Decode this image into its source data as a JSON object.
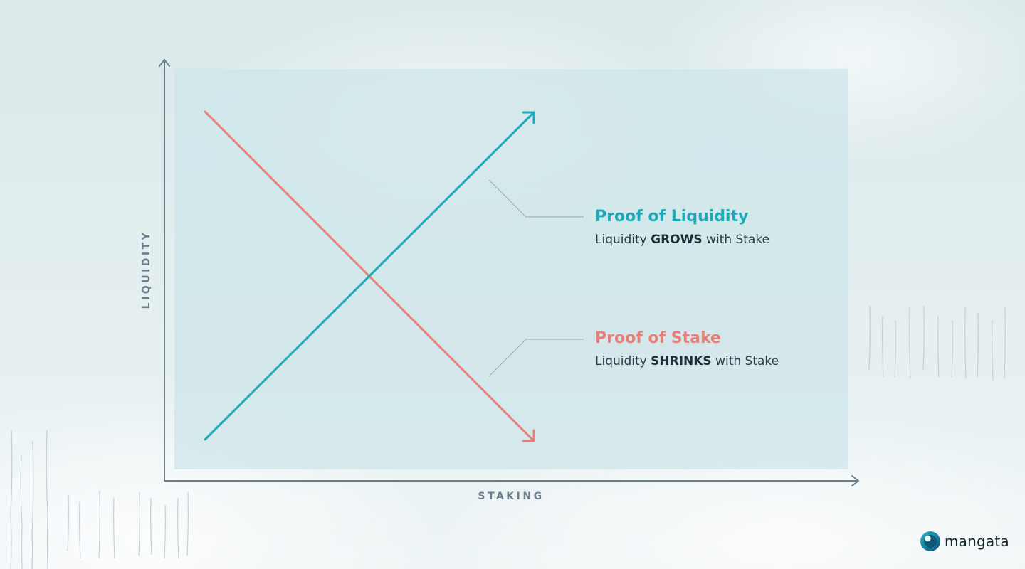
{
  "diagram": {
    "x_axis_label": "STAKING",
    "y_axis_label": "LIQUIDITY",
    "series": [
      {
        "name": "Proof of Liquidity",
        "description_before": "Liquidity ",
        "description_emphasis": "GROWS",
        "description_after": " with Stake",
        "trend": "increasing",
        "color": "#1fa9b8"
      },
      {
        "name": "Proof of Stake",
        "description_before": "Liquidity ",
        "description_emphasis": "SHRINKS",
        "description_after": " with Stake",
        "trend": "decreasing",
        "color": "#e8807a"
      }
    ],
    "axis_color": "#6b7f8c",
    "panel_color": "#cfe7ea"
  },
  "brand": {
    "name": "mangata",
    "logo_icon": "mangata-logo-icon"
  }
}
